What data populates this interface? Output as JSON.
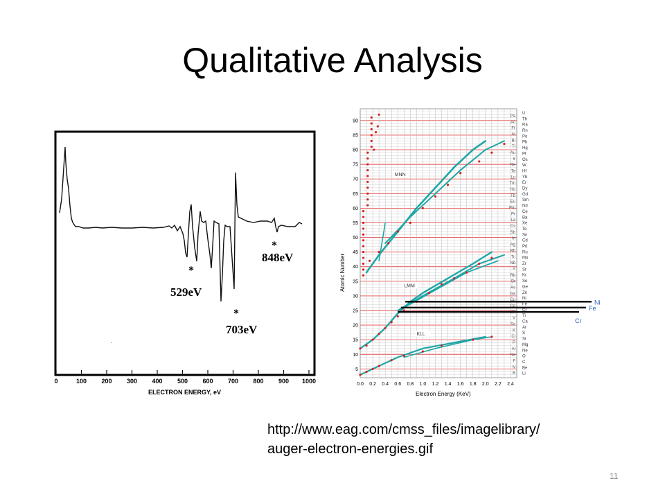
{
  "slide": {
    "title": "Qualitative Analysis",
    "source_line1": "http://www.eag.com/cmss_files/imagelibrary/",
    "source_line2": "auger-electron-energies.gif",
    "page_number": "11"
  },
  "spectrum": {
    "xlabel": "ELECTRON ENERGY, eV",
    "xticks": [
      "0",
      "100",
      "200",
      "300",
      "400",
      "500",
      "600",
      "700",
      "800",
      "900",
      "1000"
    ],
    "peaks": [
      {
        "label": "529eV",
        "marker": "*",
        "energy": 529
      },
      {
        "label": "703eV",
        "marker": "*",
        "energy": 703
      },
      {
        "label": "848eV",
        "marker": "*",
        "energy": 848
      }
    ]
  },
  "auger_chart": {
    "xlabel": "Electron Energy (KeV)",
    "ylabel": "Atomic Number",
    "xticks": [
      "0.0",
      "0.2",
      "0.4",
      "0.6",
      "0.8",
      "1.0",
      "1.2",
      "1.4",
      "1.6",
      "1.8",
      "2.0",
      "2.2",
      "2.4"
    ],
    "yticks": [
      "5",
      "10",
      "15",
      "20",
      "25",
      "30",
      "35",
      "40",
      "45",
      "50",
      "55",
      "60",
      "65",
      "70",
      "75",
      "80",
      "85",
      "90"
    ],
    "bands": [
      "MNN",
      "LMM",
      "KLL"
    ],
    "legend": [
      {
        "label": "Ni",
        "color": "#2f5fbf"
      },
      {
        "label": "Fe",
        "color": "#2f5fbf"
      },
      {
        "label": "Cr",
        "color": "#2f5fbf"
      }
    ],
    "elements_left": [
      "Pa",
      "Ac",
      "Fr",
      "At",
      "Bi",
      "Tl",
      "Au",
      "Ir",
      "Re",
      "Ta",
      "Lu",
      "Tm",
      "Ho",
      "Tb",
      "Eu",
      "Pm",
      "Pr",
      "La",
      "Cs",
      "Sb",
      "In",
      "Ag",
      "Rh",
      "Tc",
      "Nb",
      "Y",
      "Rb",
      "Br",
      "As",
      "Ga",
      "Cu",
      "Co",
      "Mn",
      "V",
      "Sc",
      "K",
      "Cl",
      "P",
      "Al",
      "Na",
      "F",
      "N",
      "B"
    ],
    "elements_right": [
      "U",
      "Th",
      "Ra",
      "Rn",
      "Po",
      "Pb",
      "Hg",
      "Pt",
      "Os",
      "W",
      "Hf",
      "Yb",
      "Er",
      "Dy",
      "Gd",
      "Sm",
      "Nd",
      "Ce",
      "Ba",
      "Xe",
      "Te",
      "Sn",
      "Cd",
      "Pd",
      "Ru",
      "Mo",
      "Zr",
      "Sr",
      "Kr",
      "Se",
      "Ge",
      "Zn",
      "Ni",
      "Fe",
      "Cr",
      "Ti",
      "Ca",
      "Ar",
      "S",
      "Si",
      "Mg",
      "Ne",
      "O",
      "C",
      "Be",
      "Li"
    ],
    "colors": {
      "grid_red": "#e44a4a",
      "grid_gray": "#bbbbbb",
      "teal": "#1fa6a6",
      "dot_red": "#d42020",
      "ref_line": "#000000"
    }
  }
}
